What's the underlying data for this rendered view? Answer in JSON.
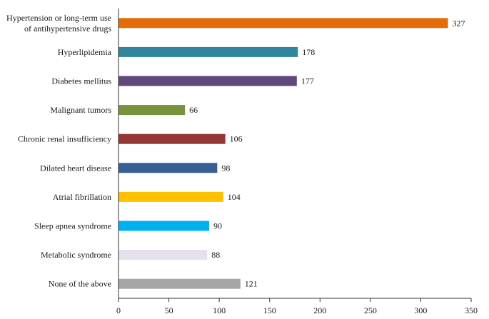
{
  "chart_data": {
    "type": "bar",
    "orientation": "horizontal",
    "title": "",
    "xlabel": "",
    "ylabel": "",
    "xlim": [
      0,
      350
    ],
    "xticks": [
      0,
      50,
      100,
      150,
      200,
      250,
      300,
      350
    ],
    "grid": false,
    "legend": "none",
    "categories": [
      [
        "Hypertension or long-term use",
        "of antihypertensive drugs"
      ],
      [
        "Hyperlipidemia"
      ],
      [
        "Diabetes mellitus"
      ],
      [
        "Malignant tumors"
      ],
      [
        "Chronic renal insufficiency"
      ],
      [
        "Dilated heart disease"
      ],
      [
        "Atrial fibrillation"
      ],
      [
        "Sleep apnea syndrome"
      ],
      [
        "Metabolic syndrome"
      ],
      [
        "None of the above"
      ]
    ],
    "values": [
      327,
      178,
      177,
      66,
      106,
      98,
      104,
      90,
      88,
      121
    ],
    "colors": [
      "#E46C0A",
      "#31859C",
      "#604A7B",
      "#77933C",
      "#953735",
      "#376092",
      "#FFC000",
      "#00B0F0",
      "#E6E0EC",
      "#A6A6A6"
    ]
  }
}
